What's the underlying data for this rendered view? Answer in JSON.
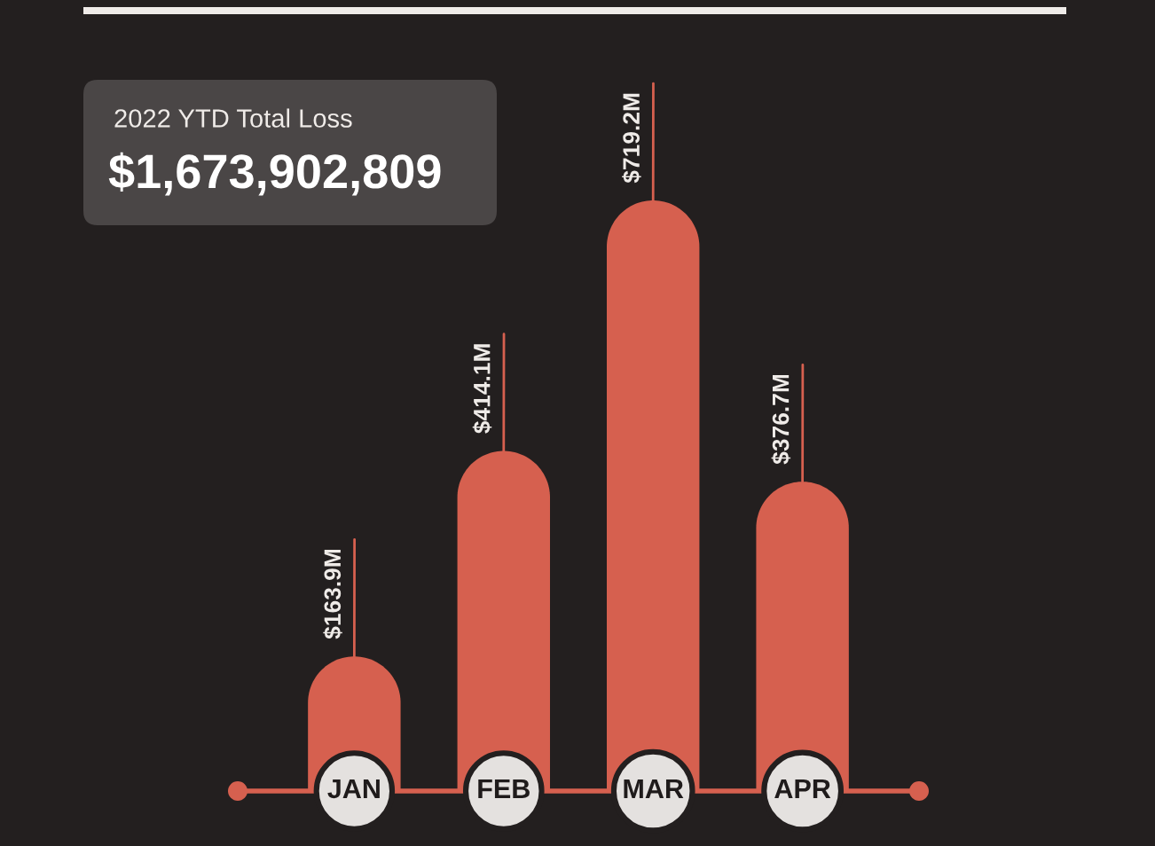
{
  "chart_data": {
    "type": "bar",
    "title": "2022 YTD Total Loss",
    "subtitle": "$1,673,902,809",
    "categories": [
      "JAN",
      "FEB",
      "MAR",
      "APR"
    ],
    "values": [
      163.9,
      414.1,
      719.2,
      376.7
    ],
    "value_labels": [
      "$163.9M",
      "$414.1M",
      "$719.2M",
      "$376.7M"
    ],
    "color": "#d6604f"
  }
}
